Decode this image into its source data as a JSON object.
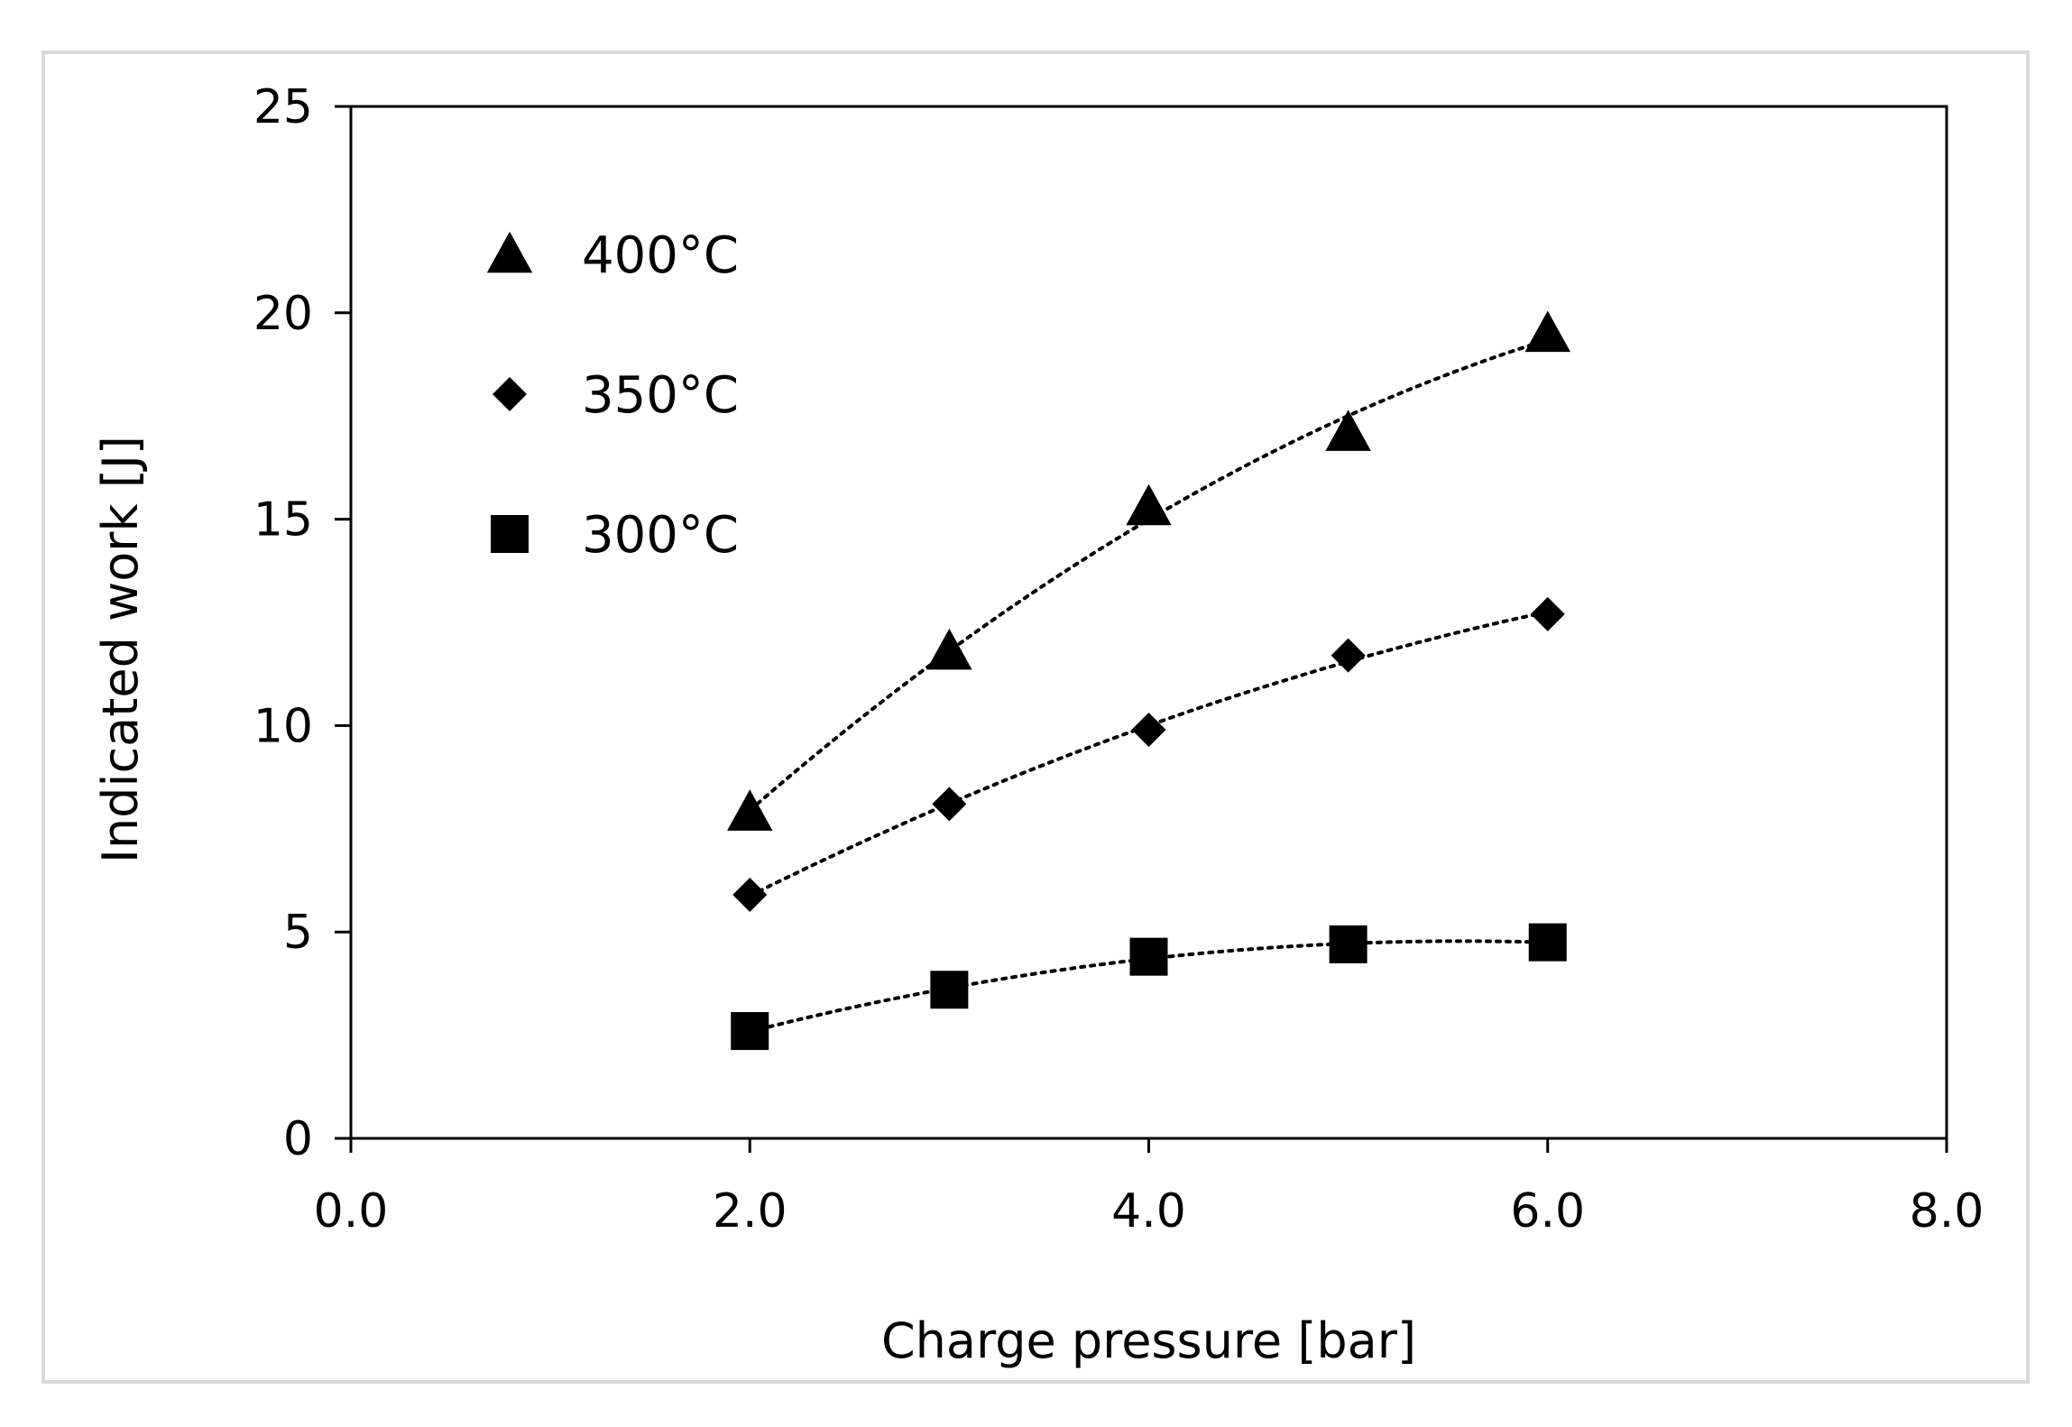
{
  "chart_data": {
    "type": "scatter",
    "title": "",
    "xlabel": "Charge pressure  [bar]",
    "ylabel": "Indicated work [J]",
    "xlim": [
      0,
      8
    ],
    "ylim": [
      0,
      25
    ],
    "x_ticks": [
      0,
      2,
      4,
      6,
      8
    ],
    "x_tick_labels": [
      "0.0",
      "2.0",
      "4.0",
      "6.0",
      "8.0"
    ],
    "y_ticks": [
      0,
      5,
      10,
      15,
      20,
      25
    ],
    "y_tick_labels": [
      "0",
      "5",
      "10",
      "15",
      "20",
      "25"
    ],
    "grid": false,
    "legend_position": "top-left",
    "trendline": "dotted polynomial fit per series",
    "series": [
      {
        "name": "400°C",
        "marker": "triangle",
        "color": "#000000",
        "x": [
          2,
          3,
          4,
          5,
          6
        ],
        "y": [
          7.9,
          11.8,
          15.3,
          17.1,
          19.5
        ]
      },
      {
        "name": "350°C",
        "marker": "diamond",
        "color": "#000000",
        "x": [
          2,
          3,
          4,
          5,
          6
        ],
        "y": [
          5.9,
          8.1,
          9.9,
          11.7,
          12.7
        ]
      },
      {
        "name": "300°C",
        "marker": "square",
        "color": "#000000",
        "x": [
          2,
          3,
          4,
          5,
          6
        ],
        "y": [
          2.6,
          3.6,
          4.4,
          4.7,
          4.75
        ]
      }
    ]
  }
}
